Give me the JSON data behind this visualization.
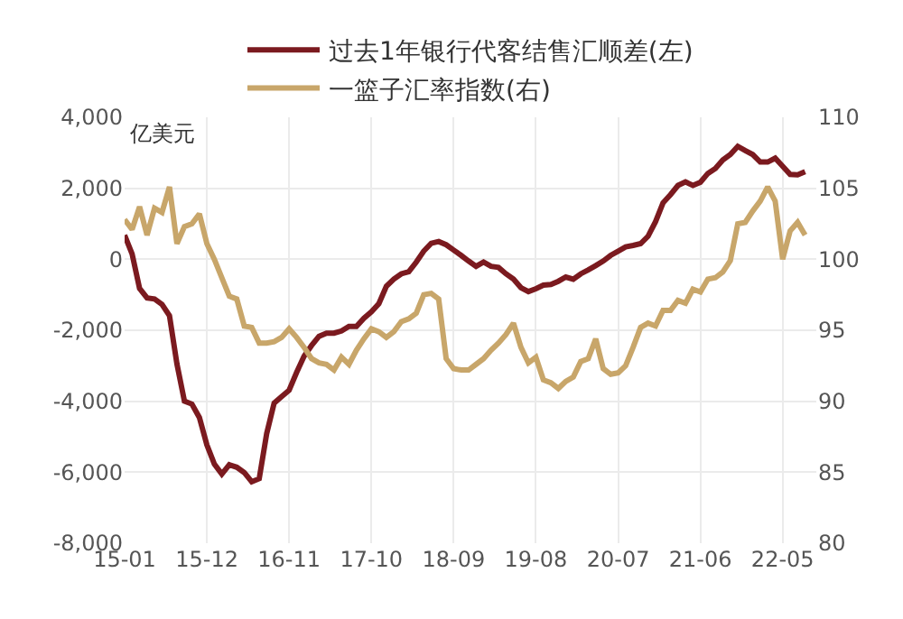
{
  "chart_data": {
    "type": "line",
    "categories": [
      "15-01",
      null,
      null,
      null,
      null,
      null,
      null,
      null,
      null,
      null,
      null,
      "15-12",
      null,
      null,
      null,
      null,
      null,
      null,
      null,
      null,
      null,
      null,
      "16-11",
      null,
      null,
      null,
      null,
      null,
      null,
      null,
      null,
      null,
      null,
      "17-10",
      null,
      null,
      null,
      null,
      null,
      null,
      null,
      null,
      null,
      null,
      "18-09",
      null,
      null,
      null,
      null,
      null,
      null,
      null,
      null,
      null,
      null,
      "19-08",
      null,
      null,
      null,
      null,
      null,
      null,
      null,
      null,
      null,
      null,
      "20-07",
      null,
      null,
      null,
      null,
      null,
      null,
      null,
      null,
      null,
      null,
      "21-06",
      null,
      null,
      null,
      null,
      null,
      null,
      null,
      null,
      null,
      null,
      "22-05",
      null,
      null,
      null
    ],
    "series": [
      {
        "name": "过去1年银行代客结售汇顺差(左)",
        "color": "#7b1a1f",
        "values": [
          680,
          150,
          -820,
          -1090,
          -1120,
          -1270,
          -1590,
          -2950,
          -4000,
          -4080,
          -4460,
          -5230,
          -5770,
          -6050,
          -5790,
          -5860,
          -6010,
          -6270,
          -6180,
          -4910,
          -4050,
          -3870,
          -3690,
          -3190,
          -2730,
          -2430,
          -2170,
          -2080,
          -2080,
          -2020,
          -1890,
          -1890,
          -1660,
          -1480,
          -1250,
          -760,
          -560,
          -410,
          -350,
          -80,
          230,
          450,
          500,
          410,
          260,
          110,
          -50,
          -200,
          -80,
          -200,
          -230,
          -410,
          -560,
          -800,
          -910,
          -830,
          -730,
          -710,
          -620,
          -500,
          -560,
          -410,
          -300,
          -180,
          -50,
          110,
          230,
          350,
          390,
          440,
          650,
          1060,
          1590,
          1820,
          2080,
          2180,
          2080,
          2170,
          2420,
          2560,
          2800,
          2950,
          3180,
          3060,
          2950,
          2740,
          2740,
          2850,
          2620,
          2390,
          2380,
          2470
        ]
      },
      {
        "name": "一篮子汇率指数(右)",
        "color": "#c8a66a",
        "axis": "y2",
        "values": [
          102.8,
          102.1,
          103.7,
          101.7,
          103.6,
          103.3,
          105.1,
          101.1,
          102.3,
          102.5,
          103.2,
          101.1,
          100.0,
          98.7,
          97.4,
          97.2,
          95.3,
          95.2,
          94.1,
          94.1,
          94.2,
          94.5,
          95.1,
          94.5,
          93.8,
          93.0,
          92.7,
          92.6,
          92.2,
          93.1,
          92.6,
          93.6,
          94.4,
          95.1,
          94.9,
          94.5,
          94.9,
          95.6,
          95.8,
          96.2,
          97.5,
          97.6,
          97.2,
          93.0,
          92.3,
          92.2,
          92.2,
          92.6,
          93.0,
          93.6,
          94.1,
          94.7,
          95.5,
          93.8,
          92.7,
          93.1,
          91.5,
          91.3,
          90.9,
          91.4,
          91.7,
          92.8,
          93.0,
          94.4,
          92.3,
          91.9,
          92.0,
          92.5,
          93.8,
          95.2,
          95.5,
          95.3,
          96.4,
          96.4,
          97.1,
          96.9,
          97.9,
          97.7,
          98.6,
          98.7,
          99.1,
          99.9,
          102.5,
          102.6,
          103.4,
          104.1,
          105.1,
          104.1,
          100.0,
          102.0,
          102.6,
          101.7
        ]
      }
    ],
    "ylabel": "亿美元",
    "ylim": [
      -8000,
      4000
    ],
    "yticks": [
      {
        "value": -8000,
        "label": "-8,000"
      },
      {
        "value": -6000,
        "label": "-6,000"
      },
      {
        "value": -4000,
        "label": "-4,000"
      },
      {
        "value": -2000,
        "label": "-2,000"
      },
      0,
      {
        "value": 2000,
        "label": "2,000"
      },
      {
        "value": 4000,
        "label": "4,000"
      }
    ],
    "y2lim": [
      80,
      110
    ],
    "y2ticks": [
      80,
      85,
      90,
      95,
      100,
      105,
      110
    ],
    "grid": true,
    "legend": "top",
    "marker": "none",
    "line_style": "solid"
  }
}
